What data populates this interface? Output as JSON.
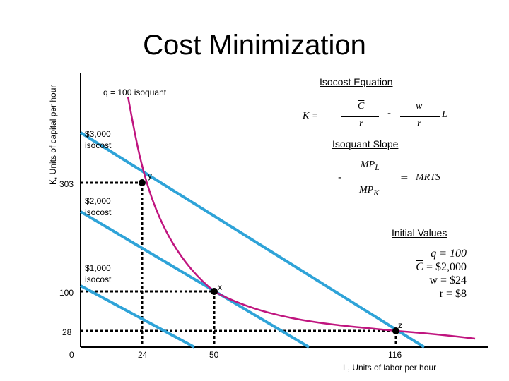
{
  "title": "Cost Minimization",
  "axes": {
    "ylabel": "K, Units of capital per hour",
    "xlabel": "L, Units of labor per hour"
  },
  "chart_data": {
    "type": "line",
    "title": "Cost Minimization",
    "xlabel": "L, Units of labor per hour",
    "ylabel": "K, Units of capital per hour",
    "xticks": [
      "0",
      "24",
      "50",
      "116"
    ],
    "yticks": [
      "303",
      "100",
      "28"
    ],
    "isocost_lines": [
      {
        "name": "$3,000 isocost",
        "label_line1": "$3,000",
        "label_line2": "isocost",
        "cost": 3000
      },
      {
        "name": "$2,000 isocost",
        "label_line1": "$2,000",
        "label_line2": "isocost",
        "cost": 2000
      },
      {
        "name": "$1,000 isocost",
        "label_line1": "$1,000",
        "label_line2": "isocost",
        "cost": 1000
      }
    ],
    "isoquant": {
      "name": "q = 100 isoquant",
      "q": 100
    },
    "points": [
      {
        "name": "y",
        "L": 24,
        "K": 303
      },
      {
        "name": "x",
        "L": 50,
        "K": 100
      },
      {
        "name": "z",
        "L": 116,
        "K": 28
      }
    ],
    "colors": {
      "isocost": "#2ea3d8",
      "isoquant": "#c0157f",
      "dashed": "#000000"
    }
  },
  "isocost_equation": {
    "heading": "Isocost Equation",
    "K": "K =",
    "C": "C",
    "r1": "r",
    "minus": "-",
    "w": "w",
    "r2": "r",
    "L": "L"
  },
  "isoquant_slope": {
    "heading": "Isoquant Slope",
    "minus": "-",
    "num": "MP",
    "num_sub": "L",
    "den": "MP",
    "den_sub": "K",
    "equals": "=",
    "mrts": "MRTS"
  },
  "initial_values": {
    "heading": "Initial Values",
    "q": "q = 100",
    "C_sym": "C",
    "C_val": " = $2,000",
    "w": "w = $24",
    "r": "r = $8"
  }
}
